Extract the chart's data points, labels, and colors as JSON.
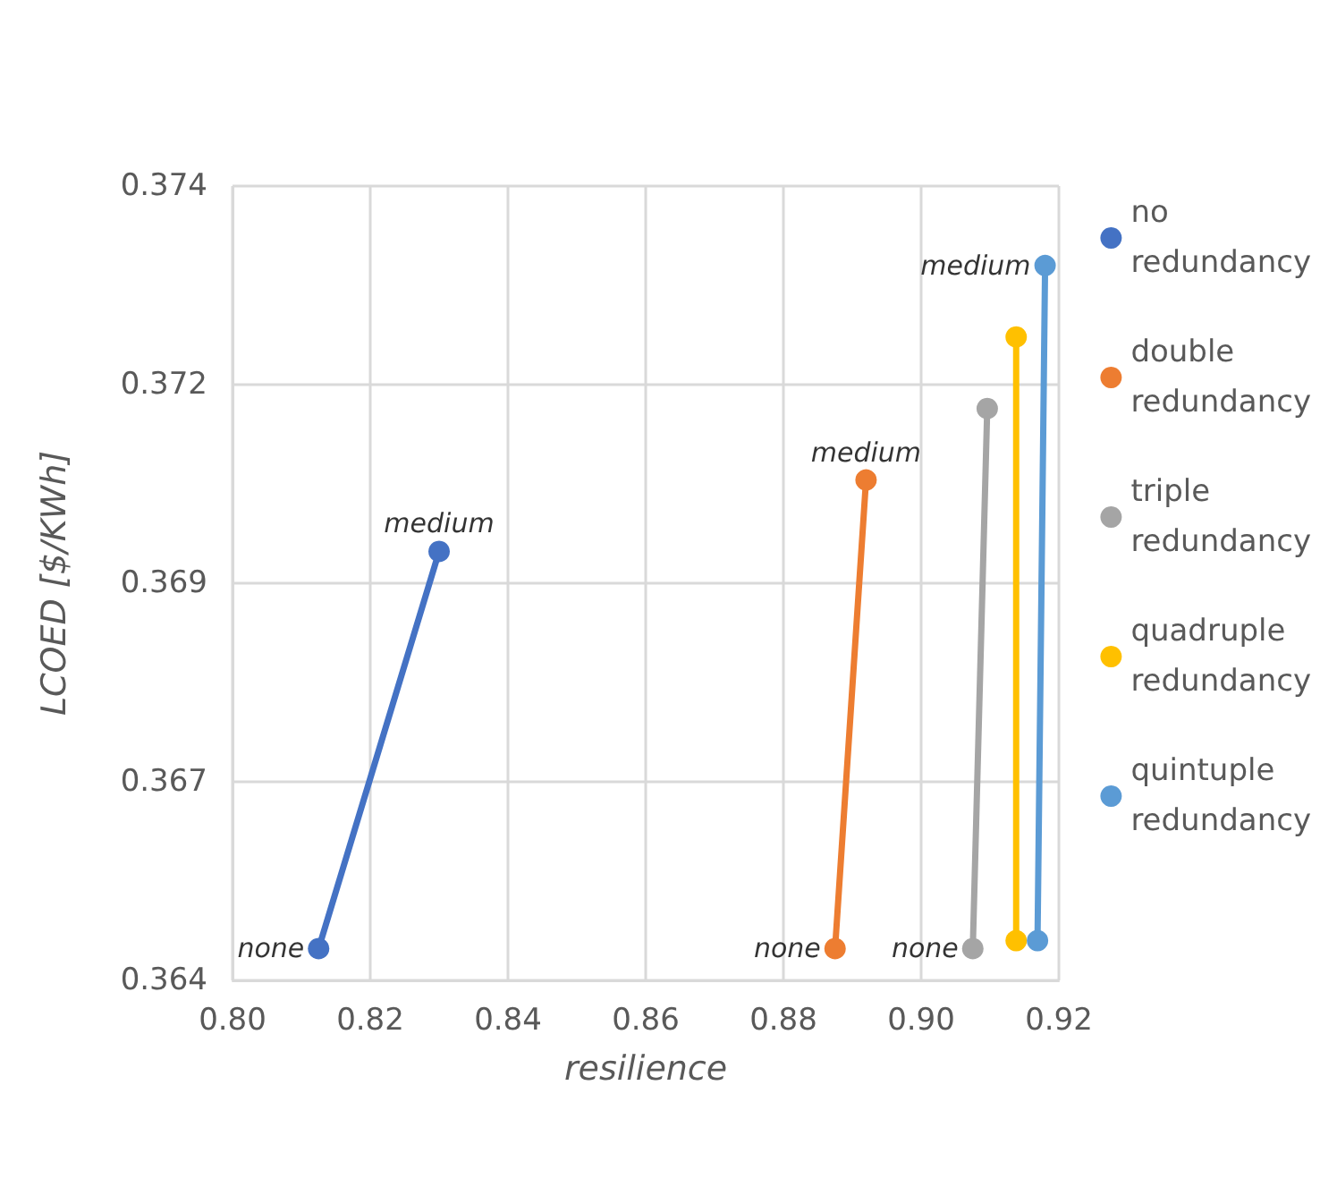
{
  "chart_data": {
    "type": "line",
    "xlabel": "resilience",
    "ylabel": "LCOED [$/KWh]",
    "xlim": [
      0.8,
      0.92
    ],
    "xticks": [
      {
        "value": 0.8,
        "label": "0.80"
      },
      {
        "value": 0.82,
        "label": "0.82"
      },
      {
        "value": 0.84,
        "label": "0.84"
      },
      {
        "value": 0.86,
        "label": "0.86"
      },
      {
        "value": 0.88,
        "label": "0.88"
      },
      {
        "value": 0.9,
        "label": "0.90"
      },
      {
        "value": 0.92,
        "label": "0.92"
      }
    ],
    "ylim": [
      0.364,
      0.374
    ],
    "yticks": [
      0.364,
      {
        "value": 0.3665,
        "label": "0.367"
      },
      0.369,
      {
        "value": 0.3715,
        "label": "0.372"
      },
      0.374
    ],
    "grid": true,
    "legend": "right",
    "marker": "circle",
    "line_style": "solid",
    "series": [
      {
        "name": "no redundancy",
        "color": "#4472c4",
        "x": [
          0.8125,
          0.83
        ],
        "values": [
          0.3644,
          0.3694
        ]
      },
      {
        "name": "double redundancy",
        "color": "#ed7d31",
        "x": [
          0.8875,
          0.892
        ],
        "values": [
          0.3644,
          0.3703
        ]
      },
      {
        "name": "triple redundancy",
        "color": "#a5a5a5",
        "x": [
          0.9075,
          0.9096
        ],
        "values": [
          0.3644,
          0.3712
        ]
      },
      {
        "name": "quadruple redundancy",
        "color": "#ffc000",
        "x": [
          0.9138,
          0.9138
        ],
        "values": [
          0.3645,
          0.3721
        ]
      },
      {
        "name": "quintuple redundancy",
        "color": "#5b9bd5",
        "x": [
          0.9169,
          0.918
        ],
        "values": [
          0.3645,
          0.373
        ]
      }
    ],
    "annotations": [
      {
        "text": "none",
        "x": 0.8125,
        "y": 0.3644
      },
      {
        "text": "medium",
        "x": 0.83,
        "y": 0.3694
      },
      {
        "text": "none",
        "x": 0.8875,
        "y": 0.3644
      },
      {
        "text": "medium",
        "x": 0.892,
        "y": 0.3703
      },
      {
        "text": "none",
        "x": 0.9075,
        "y": 0.3644
      },
      {
        "text": "medium",
        "x": 0.918,
        "y": 0.373
      }
    ]
  }
}
